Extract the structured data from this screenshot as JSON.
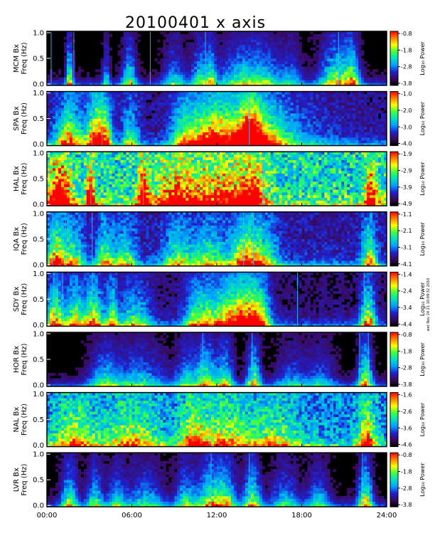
{
  "title": "20100401 x axis",
  "side_note": "wet Nov 24 21 10:09:32 2010",
  "chart_data": {
    "type": "heatmap",
    "title": "20100401 x axis",
    "xlabel": "",
    "x_ticks": [
      "00:00",
      "06:00",
      "12:00",
      "18:00",
      "24:00"
    ],
    "xlim_hours": [
      0,
      24
    ],
    "ylim_hz": [
      0,
      1.0
    ],
    "y_ticks": [
      "0.0",
      "0.5",
      "1.0"
    ],
    "ylabel_common": "Freq (Hz)",
    "colorbar_label": "Log₁₀ Power",
    "colorscale": [
      "#000000",
      "#3a0a5e",
      "#2020d0",
      "#00a0ff",
      "#00e0c0",
      "#40ff40",
      "#ffff00",
      "#ff8000",
      "#ff0000"
    ],
    "panels": [
      {
        "station": "MCM Bx",
        "cbar_ticks": [
          "-0.8",
          "-1.8",
          "-2.8",
          "-3.8"
        ],
        "background": 0.08,
        "bursts": [
          [
            1.6,
            0.25,
            0.7
          ],
          [
            4.2,
            0.25,
            0.4
          ],
          [
            5.8,
            0.5,
            0.6
          ],
          [
            9,
            0.8,
            0.4
          ],
          [
            10.8,
            0.6,
            0.5
          ],
          [
            11.6,
            0.4,
            0.5
          ],
          [
            13.6,
            1.5,
            0.5
          ],
          [
            15.5,
            1.2,
            0.4
          ],
          [
            17.3,
            0.8,
            0.3
          ],
          [
            20.5,
            1.2,
            0.7
          ],
          [
            21.6,
            0.5,
            0.5
          ]
        ],
        "lines": [
          0.3,
          1.9,
          7.3,
          11.2,
          20.6
        ]
      },
      {
        "station": "SPA Bx",
        "cbar_ticks": [
          "-1.0",
          "-2.0",
          "-3.0",
          "-4.0"
        ],
        "background": 0.18,
        "bursts": [
          [
            1.6,
            1.0,
            0.8
          ],
          [
            3.4,
            0.6,
            0.9
          ],
          [
            4.1,
            0.5,
            0.8
          ],
          [
            5.9,
            0.6,
            0.5
          ],
          [
            9.6,
            0.9,
            0.5
          ],
          [
            11.3,
            1.5,
            0.6
          ],
          [
            13.0,
            2.2,
            0.8
          ],
          [
            14.4,
            0.8,
            0.9
          ],
          [
            15.6,
            1.6,
            0.5
          ],
          [
            17.5,
            2.8,
            0.2
          ]
        ],
        "lines": [
          3.2,
          3.9,
          14.3
        ]
      },
      {
        "station": "HAL Bx",
        "cbar_ticks": [
          "-1.9",
          "-2.9",
          "-3.9",
          "-4.9"
        ],
        "background": 0.5,
        "bursts": [
          [
            0.9,
            0.8,
            1.0
          ],
          [
            3.1,
            0.3,
            0.9
          ],
          [
            6.8,
            0.4,
            0.8
          ],
          [
            9,
            1.5,
            0.6
          ],
          [
            12,
            2,
            0.6
          ],
          [
            14.4,
            1,
            0.8
          ],
          [
            22.9,
            0.5,
            0.7
          ]
        ],
        "lines": [
          3.1,
          6.8,
          15.3
        ]
      },
      {
        "station": "IQA Bx",
        "cbar_ticks": [
          "-1.1",
          "-2.1",
          "-3.1",
          "-4.1"
        ],
        "background": 0.2,
        "bursts": [
          [
            0.6,
            0.6,
            0.8
          ],
          [
            1.8,
            0.8,
            0.6
          ],
          [
            4.1,
            0.6,
            0.6
          ],
          [
            5.5,
            0.8,
            0.5
          ],
          [
            9.2,
            1.0,
            0.5
          ],
          [
            11.5,
            1.4,
            0.5
          ],
          [
            14.0,
            1.0,
            0.8
          ],
          [
            15.4,
            1.0,
            0.5
          ],
          [
            22.8,
            0.5,
            0.7
          ]
        ],
        "lines": [
          0.4,
          1.3,
          3.2,
          13.9,
          14.6
        ]
      },
      {
        "station": "SDY Bx",
        "cbar_ticks": [
          "-1.4",
          "-2.4",
          "-3.4",
          "-4.4"
        ],
        "background": 0.14,
        "bursts": [
          [
            0.6,
            0.7,
            0.8
          ],
          [
            2.0,
            0.6,
            0.7
          ],
          [
            3.3,
            0.7,
            0.8
          ],
          [
            4.6,
            0.4,
            0.6
          ],
          [
            6.2,
            1.2,
            0.5
          ],
          [
            10.6,
            1.0,
            0.5
          ],
          [
            12.6,
            1.8,
            0.7
          ],
          [
            14.0,
            1.2,
            0.7
          ],
          [
            15.0,
            0.8,
            0.6
          ],
          [
            22.7,
            0.5,
            0.8
          ]
        ],
        "lines": [
          0.5,
          1.1,
          3.2,
          17.7,
          22.4
        ]
      },
      {
        "station": "HOR Bx",
        "cbar_ticks": [
          "-0.8",
          "-1.8",
          "-2.8",
          "-3.8"
        ],
        "background": 0.08,
        "bursts": [
          [
            4.0,
            1.0,
            0.4
          ],
          [
            6.5,
            2.0,
            0.4
          ],
          [
            9.8,
            0.7,
            0.4
          ],
          [
            11.2,
            0.8,
            0.7
          ],
          [
            12.6,
            0.6,
            0.6
          ],
          [
            14.6,
            0.5,
            0.7
          ],
          [
            17.3,
            1.2,
            0.3
          ],
          [
            19.4,
            1.0,
            0.3
          ],
          [
            22.5,
            0.5,
            0.8
          ]
        ],
        "lines": [
          11.0,
          14.5,
          22.1,
          22.7
        ]
      },
      {
        "station": "NAL Bx",
        "cbar_ticks": [
          "-1.6",
          "-2.6",
          "-3.6",
          "-4.6"
        ],
        "background": 0.36,
        "bursts": [
          [
            2.0,
            1.5,
            0.5
          ],
          [
            6.0,
            1.8,
            0.5
          ],
          [
            10.4,
            1.0,
            0.6
          ],
          [
            12.6,
            1.6,
            0.5
          ],
          [
            16.0,
            1.8,
            0.4
          ],
          [
            22.6,
            0.6,
            0.7
          ]
        ],
        "lines": [
          7.9,
          11.5,
          20.2,
          23.4
        ]
      },
      {
        "station": "LVR Bx",
        "cbar_ticks": [
          "-0.8",
          "-1.8",
          "-2.8",
          "-3.8"
        ],
        "background": 0.08,
        "bursts": [
          [
            1.6,
            0.6,
            0.6
          ],
          [
            3.4,
            0.6,
            0.5
          ],
          [
            4.9,
            0.6,
            0.4
          ],
          [
            6.9,
            1.4,
            0.4
          ],
          [
            9.8,
            0.7,
            0.5
          ],
          [
            11.5,
            0.9,
            0.7
          ],
          [
            12.7,
            0.7,
            0.6
          ],
          [
            14.5,
            0.6,
            0.7
          ],
          [
            16.8,
            1.0,
            0.4
          ],
          [
            19.2,
            0.8,
            0.4
          ],
          [
            22.5,
            0.5,
            0.8
          ]
        ],
        "lines": [
          11.6,
          14.3,
          22.3
        ]
      }
    ]
  }
}
